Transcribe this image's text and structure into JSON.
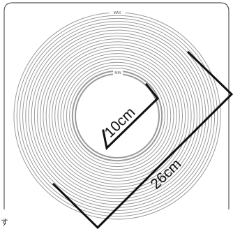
{
  "labels": {
    "max": "MAX",
    "min": "MIN",
    "inner_size": "10cm",
    "outer_size": "26cm",
    "corner": "す"
  },
  "diagram": {
    "ring_count": 22,
    "ring_color": "#9a9a9a",
    "line_color": "#111111",
    "frame_color": "#555555"
  }
}
